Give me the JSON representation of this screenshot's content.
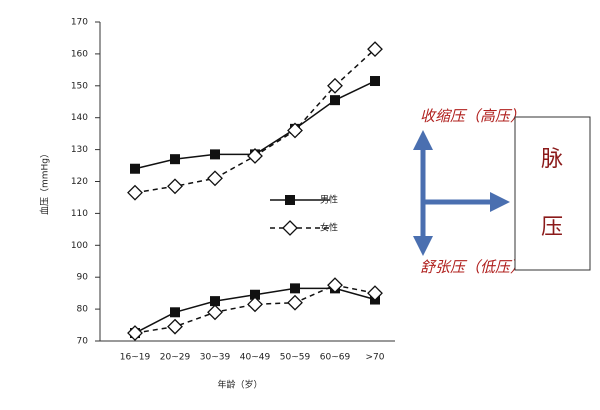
{
  "chart_data": {
    "type": "line",
    "y_label": "血压（mmHg）",
    "x_label": "年龄（岁）",
    "categories": [
      "16~19",
      "20~29",
      "30~39",
      "40~49",
      "50~59",
      "60~69",
      ">70"
    ],
    "series": [
      {
        "name": "男性",
        "color": "#111111",
        "marker": "square",
        "dashed": false,
        "systolic": [
          124,
          127,
          128.5,
          128.5,
          136.5,
          145.5,
          151.5
        ],
        "diastolic": [
          72.5,
          79,
          82.5,
          84.5,
          86.5,
          86.5,
          83
        ]
      },
      {
        "name": "女性",
        "color": "#111111",
        "marker": "diamond",
        "dashed": true,
        "systolic": [
          116.5,
          118.5,
          121,
          128,
          136,
          150,
          161.5
        ],
        "diastolic": [
          72.5,
          74.5,
          79,
          81.5,
          82,
          87.5,
          85
        ]
      }
    ],
    "ylim": [
      70,
      170
    ],
    "yticks": [
      70,
      80,
      90,
      100,
      110,
      120,
      130,
      140,
      150,
      160,
      170
    ],
    "annotations": {
      "systolic": "收缩压（高压）",
      "diastolic": "舒张压（低压）",
      "pulse_pressure": [
        "脉",
        "压"
      ]
    }
  }
}
